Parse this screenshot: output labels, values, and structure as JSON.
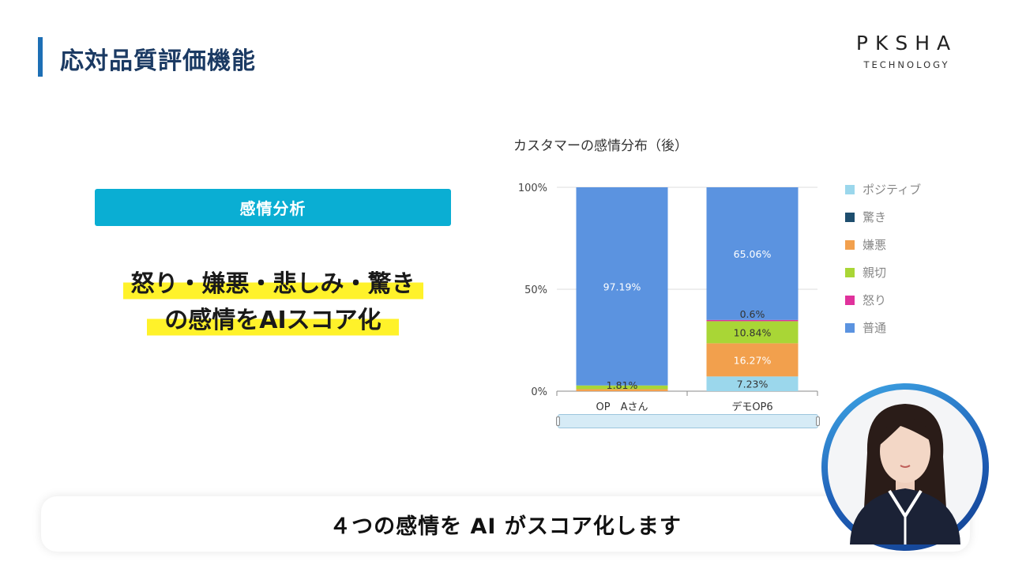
{
  "header": {
    "title": "応対品質評価機能"
  },
  "logo": {
    "main": "PKSHA",
    "sub": "TECHNOLOGY"
  },
  "left_panel": {
    "tag": "感情分析",
    "headline_line1": "怒り・嫌悪・悲しみ・驚き",
    "headline_line2": "の感情をAIスコア化"
  },
  "chart_data": {
    "type": "bar",
    "stacked": true,
    "title": "カスタマーの感情分布（後）",
    "categories": [
      "OP　Aさん",
      "デモOP6"
    ],
    "ylim": [
      0,
      100
    ],
    "y_ticks": [
      "0%",
      "50%",
      "100%"
    ],
    "legend_position": "right",
    "legend": [
      "ポジティブ",
      "驚き",
      "嫌悪",
      "親切",
      "怒り",
      "普通"
    ],
    "series": [
      {
        "name": "ポジティブ",
        "color": "#9bd7ec",
        "values": [
          0,
          7.23
        ],
        "labels": [
          "",
          "7.23%"
        ]
      },
      {
        "name": "驚き",
        "color": "#1e4e6e",
        "values": [
          0,
          0
        ],
        "labels": [
          "",
          ""
        ]
      },
      {
        "name": "嫌悪",
        "color": "#f2a04d",
        "values": [
          1.0,
          16.27
        ],
        "labels": [
          "",
          "16.27%"
        ]
      },
      {
        "name": "親切",
        "color": "#a9d636",
        "values": [
          1.81,
          10.84
        ],
        "labels": [
          "1.81%",
          "10.84%"
        ]
      },
      {
        "name": "怒り",
        "color": "#e0329c",
        "values": [
          0,
          0.6
        ],
        "labels": [
          "",
          "0.6%"
        ]
      },
      {
        "name": "普通",
        "color": "#5b93e0",
        "values": [
          97.19,
          65.06
        ],
        "labels": [
          "97.19%",
          "65.06%"
        ]
      }
    ]
  },
  "subtitle": {
    "text": "４つの感情を AI がスコア化します"
  }
}
